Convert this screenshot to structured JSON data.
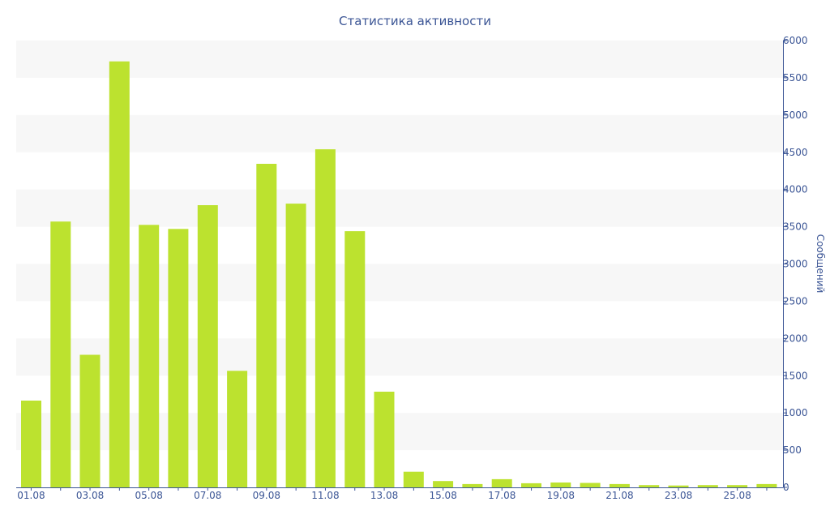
{
  "chart_data": {
    "type": "bar",
    "title": "Статистика активности",
    "xlabel": "",
    "ylabel": "Сообщений",
    "categories": [
      "01.08",
      "02.08",
      "03.08",
      "04.08",
      "05.08",
      "06.08",
      "07.08",
      "08.08",
      "09.08",
      "10.08",
      "11.08",
      "12.08",
      "13.08",
      "14.08",
      "15.08",
      "16.08",
      "17.08",
      "18.08",
      "19.08",
      "20.08",
      "21.08",
      "22.08",
      "23.08",
      "24.08",
      "25.08",
      "26.08"
    ],
    "x_tick_labels": [
      "01.08",
      "03.08",
      "05.08",
      "07.08",
      "09.08",
      "11.08",
      "13.08",
      "15.08",
      "17.08",
      "19.08",
      "21.08",
      "23.08",
      "25.08"
    ],
    "values": [
      1165,
      3570,
      1780,
      5720,
      3525,
      3470,
      3790,
      1565,
      4345,
      3810,
      4540,
      3440,
      1285,
      210,
      85,
      45,
      110,
      55,
      65,
      60,
      45,
      30,
      25,
      30,
      30,
      45
    ],
    "ylim": [
      0,
      6000
    ],
    "y_ticks": [
      0,
      500,
      1000,
      1500,
      2000,
      2500,
      3000,
      3500,
      4000,
      4500,
      5000,
      5500,
      6000
    ],
    "y_axis_side": "right",
    "grid": "alternating horizontal bands",
    "legend": "none",
    "colors": {
      "bar": "#bce22f",
      "text": "#3b5595",
      "band": "#f7f7f7"
    }
  }
}
